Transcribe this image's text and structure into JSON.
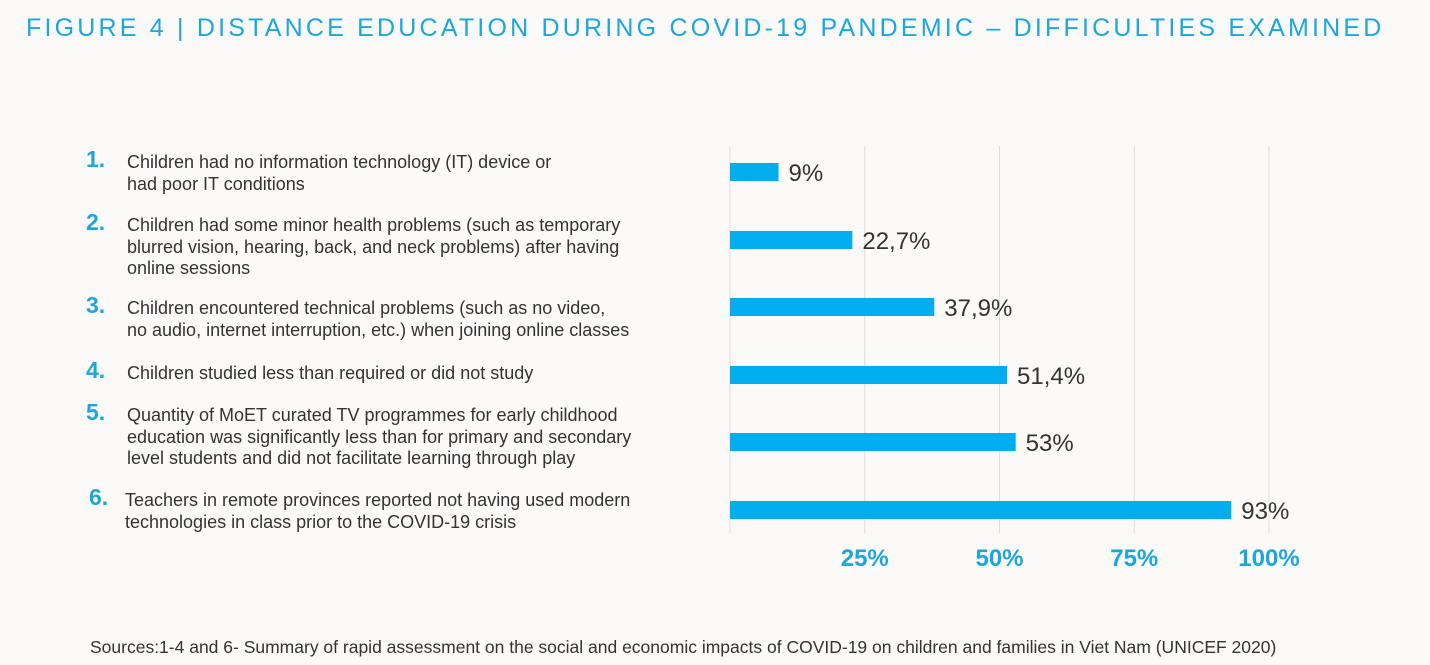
{
  "title": "FIGURE 4 | DISTANCE EDUCATION DURING COVID-19 PANDEMIC – DIFFICULTIES EXAMINED",
  "items": [
    {
      "num": "1.",
      "lines": [
        "Children had no information technology (IT) device or",
        "had poor IT conditions"
      ]
    },
    {
      "num": "2.",
      "lines": [
        "Children had some minor health problems (such as temporary",
        "blurred vision, hearing, back, and neck problems) after having",
        "online sessions"
      ]
    },
    {
      "num": "3.",
      "lines": [
        "Children encountered technical problems (such as no video,",
        "no audio, internet interruption, etc.) when joining online classes"
      ]
    },
    {
      "num": "4.",
      "lines": [
        "Children studied less than required or did not study"
      ]
    },
    {
      "num": "5.",
      "lines": [
        "Quantity of MoET curated TV programmes for early childhood",
        "education was significantly less than for primary and secondary",
        "level students and did not facilitate learning through play"
      ]
    },
    {
      "num": "6.",
      "lines": [
        "Teachers in remote provinces reported not having used modern",
        "technologies in class prior to the COVID-19 crisis"
      ]
    }
  ],
  "chart_data": {
    "type": "bar",
    "orientation": "horizontal",
    "categories": [
      "1.",
      "2.",
      "3.",
      "4.",
      "5.",
      "6."
    ],
    "values": [
      9,
      22.7,
      37.9,
      51.4,
      53,
      93
    ],
    "data_labels": [
      "9%",
      "22,7%",
      "37,9%",
      "51,4%",
      "53%",
      "93%"
    ],
    "xlim": [
      0,
      100
    ],
    "x_ticks": [
      25,
      50,
      75,
      100
    ],
    "x_tick_labels": [
      "25%",
      "50%",
      "75%",
      "100%"
    ],
    "grid": true,
    "bar_color": "#00aeef",
    "tick_color": "#1ba7dd"
  },
  "source": "Sources:1-4 and 6- Summary of rapid assessment on the social and economic impacts of COVID-19 on children and families in Viet Nam (UNICEF 2020)"
}
